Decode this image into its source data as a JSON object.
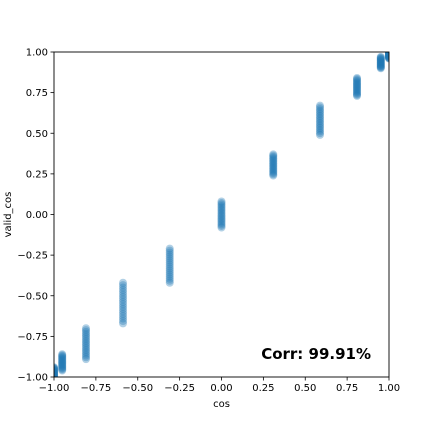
{
  "chart_data": {
    "type": "scatter",
    "xlabel": "cos",
    "ylabel": "valid_cos",
    "xlim": [
      -1.0,
      1.0
    ],
    "ylim": [
      -1.0,
      1.0
    ],
    "xticks": [
      -1.0,
      -0.75,
      -0.5,
      -0.25,
      0.0,
      0.25,
      0.5,
      0.75,
      1.0
    ],
    "yticks": [
      -1.0,
      -0.75,
      -0.5,
      -0.25,
      0.0,
      0.25,
      0.5,
      0.75,
      1.0
    ],
    "xtick_labels": [
      "−1.00",
      "−0.75",
      "−0.50",
      "−0.25",
      "0.00",
      "0.25",
      "0.50",
      "0.75",
      "1.00"
    ],
    "ytick_labels": [
      "−1.00",
      "−0.75",
      "−0.50",
      "−0.25",
      "0.00",
      "0.25",
      "0.50",
      "0.75",
      "1.00"
    ],
    "grid": false,
    "marker_color": "#1f77b4",
    "annotation": "Corr: 99.91%",
    "annotation_position": "bottom-right",
    "clusters": [
      {
        "x": -1.0,
        "y_min": -1.0,
        "y_max": -0.94
      },
      {
        "x": -0.951,
        "y_min": -0.96,
        "y_max": -0.86
      },
      {
        "x": -0.809,
        "y_min": -0.89,
        "y_max": -0.7
      },
      {
        "x": -0.588,
        "y_min": -0.67,
        "y_max": -0.42
      },
      {
        "x": -0.309,
        "y_min": -0.42,
        "y_max": -0.21
      },
      {
        "x": 0.0,
        "y_min": -0.08,
        "y_max": 0.08
      },
      {
        "x": 0.309,
        "y_min": 0.24,
        "y_max": 0.37
      },
      {
        "x": 0.588,
        "y_min": 0.49,
        "y_max": 0.67
      },
      {
        "x": 0.809,
        "y_min": 0.73,
        "y_max": 0.84
      },
      {
        "x": 0.951,
        "y_min": 0.9,
        "y_max": 0.97
      },
      {
        "x": 1.0,
        "y_min": 0.96,
        "y_max": 1.0
      }
    ]
  }
}
